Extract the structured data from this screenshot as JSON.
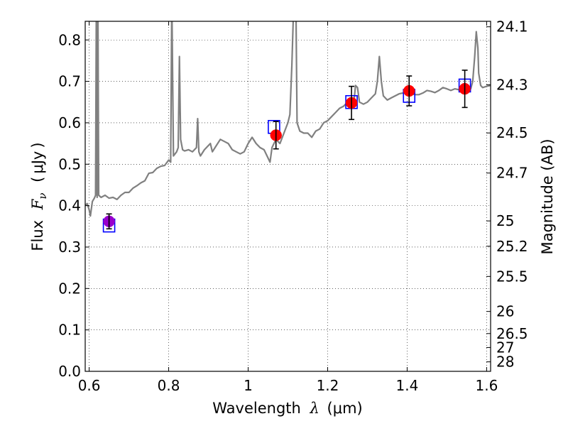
{
  "chart_data": {
    "type": "scatter",
    "xlabel": "Wavelength",
    "xlabel_symbol": "λ",
    "xlabel_unit": "μm",
    "ylabel": "Flux",
    "ylabel_symbol": "F",
    "ylabel_subscript": "ν",
    "ylabel_unit": "μJy",
    "y2label": "Magnitude (AB)",
    "xlim": [
      0.59,
      1.61
    ],
    "ylim": [
      0.0,
      0.845
    ],
    "grid": true,
    "x_ticks": [
      {
        "value": 0.6,
        "label": "0.6"
      },
      {
        "value": 0.8,
        "label": "0.8"
      },
      {
        "value": 1.0,
        "label": "1"
      },
      {
        "value": 1.2,
        "label": "1.2"
      },
      {
        "value": 1.4,
        "label": "1.4"
      },
      {
        "value": 1.6,
        "label": "1.6"
      }
    ],
    "y_ticks": [
      {
        "value": 0.0,
        "label": "0.0"
      },
      {
        "value": 0.1,
        "label": "0.1"
      },
      {
        "value": 0.2,
        "label": "0.2"
      },
      {
        "value": 0.3,
        "label": "0.3"
      },
      {
        "value": 0.4,
        "label": "0.4"
      },
      {
        "value": 0.5,
        "label": "0.5"
      },
      {
        "value": 0.6,
        "label": "0.6"
      },
      {
        "value": 0.7,
        "label": "0.7"
      },
      {
        "value": 0.8,
        "label": "0.8"
      }
    ],
    "y2_ticks": [
      {
        "mag": 24.1,
        "label": "24.1"
      },
      {
        "mag": 24.3,
        "label": "24.3"
      },
      {
        "mag": 24.5,
        "label": "24.5"
      },
      {
        "mag": 24.7,
        "label": "24.7"
      },
      {
        "mag": 25.0,
        "label": "25"
      },
      {
        "mag": 25.2,
        "label": "25.2"
      },
      {
        "mag": 25.5,
        "label": "25.5"
      },
      {
        "mag": 26.0,
        "label": "26"
      },
      {
        "mag": 26.5,
        "label": "26.5"
      },
      {
        "mag": 27.0,
        "label": "27"
      },
      {
        "mag": 28.0,
        "label": "28"
      }
    ],
    "spectrum_color": "#808080",
    "spectrum_peaks_clipped_above": 0.845,
    "spectrum": [
      [
        0.59,
        0.4
      ],
      [
        0.595,
        0.405
      ],
      [
        0.6,
        0.39
      ],
      [
        0.603,
        0.375
      ],
      [
        0.608,
        0.41
      ],
      [
        0.613,
        0.418
      ],
      [
        0.616,
        0.425
      ],
      [
        0.618,
        0.9
      ],
      [
        0.62,
        0.42
      ],
      [
        0.622,
        0.9
      ],
      [
        0.624,
        0.425
      ],
      [
        0.63,
        0.42
      ],
      [
        0.64,
        0.425
      ],
      [
        0.65,
        0.418
      ],
      [
        0.66,
        0.42
      ],
      [
        0.67,
        0.415
      ],
      [
        0.68,
        0.425
      ],
      [
        0.69,
        0.432
      ],
      [
        0.7,
        0.432
      ],
      [
        0.71,
        0.442
      ],
      [
        0.72,
        0.448
      ],
      [
        0.73,
        0.455
      ],
      [
        0.74,
        0.46
      ],
      [
        0.75,
        0.478
      ],
      [
        0.76,
        0.48
      ],
      [
        0.77,
        0.49
      ],
      [
        0.78,
        0.495
      ],
      [
        0.79,
        0.497
      ],
      [
        0.8,
        0.51
      ],
      [
        0.805,
        0.505
      ],
      [
        0.808,
        0.9
      ],
      [
        0.812,
        0.52
      ],
      [
        0.82,
        0.53
      ],
      [
        0.824,
        0.54
      ],
      [
        0.827,
        0.76
      ],
      [
        0.83,
        0.56
      ],
      [
        0.835,
        0.535
      ],
      [
        0.84,
        0.532
      ],
      [
        0.85,
        0.535
      ],
      [
        0.86,
        0.53
      ],
      [
        0.87,
        0.54
      ],
      [
        0.873,
        0.61
      ],
      [
        0.876,
        0.53
      ],
      [
        0.88,
        0.52
      ],
      [
        0.89,
        0.535
      ],
      [
        0.9,
        0.545
      ],
      [
        0.905,
        0.55
      ],
      [
        0.91,
        0.53
      ],
      [
        0.92,
        0.545
      ],
      [
        0.93,
        0.56
      ],
      [
        0.94,
        0.555
      ],
      [
        0.95,
        0.55
      ],
      [
        0.96,
        0.535
      ],
      [
        0.97,
        0.53
      ],
      [
        0.98,
        0.525
      ],
      [
        0.99,
        0.53
      ],
      [
        1.0,
        0.55
      ],
      [
        1.01,
        0.565
      ],
      [
        1.02,
        0.55
      ],
      [
        1.03,
        0.54
      ],
      [
        1.04,
        0.535
      ],
      [
        1.05,
        0.515
      ],
      [
        1.055,
        0.505
      ],
      [
        1.06,
        0.54
      ],
      [
        1.07,
        0.56
      ],
      [
        1.08,
        0.55
      ],
      [
        1.09,
        0.575
      ],
      [
        1.1,
        0.6
      ],
      [
        1.105,
        0.62
      ],
      [
        1.11,
        0.74
      ],
      [
        1.115,
        0.9
      ],
      [
        1.12,
        0.9
      ],
      [
        1.123,
        0.6
      ],
      [
        1.13,
        0.58
      ],
      [
        1.14,
        0.575
      ],
      [
        1.15,
        0.575
      ],
      [
        1.16,
        0.565
      ],
      [
        1.17,
        0.58
      ],
      [
        1.18,
        0.585
      ],
      [
        1.19,
        0.6
      ],
      [
        1.2,
        0.605
      ],
      [
        1.21,
        0.615
      ],
      [
        1.22,
        0.625
      ],
      [
        1.23,
        0.635
      ],
      [
        1.24,
        0.64
      ],
      [
        1.25,
        0.65
      ],
      [
        1.26,
        0.655
      ],
      [
        1.265,
        0.64
      ],
      [
        1.27,
        0.69
      ],
      [
        1.275,
        0.685
      ],
      [
        1.28,
        0.65
      ],
      [
        1.29,
        0.645
      ],
      [
        1.3,
        0.65
      ],
      [
        1.31,
        0.66
      ],
      [
        1.32,
        0.67
      ],
      [
        1.325,
        0.7
      ],
      [
        1.33,
        0.76
      ],
      [
        1.335,
        0.7
      ],
      [
        1.34,
        0.665
      ],
      [
        1.35,
        0.655
      ],
      [
        1.36,
        0.66
      ],
      [
        1.37,
        0.665
      ],
      [
        1.38,
        0.67
      ],
      [
        1.39,
        0.672
      ],
      [
        1.4,
        0.675
      ],
      [
        1.41,
        0.67
      ],
      [
        1.42,
        0.668
      ],
      [
        1.43,
        0.668
      ],
      [
        1.44,
        0.672
      ],
      [
        1.45,
        0.678
      ],
      [
        1.46,
        0.676
      ],
      [
        1.47,
        0.673
      ],
      [
        1.48,
        0.678
      ],
      [
        1.49,
        0.685
      ],
      [
        1.5,
        0.682
      ],
      [
        1.51,
        0.678
      ],
      [
        1.52,
        0.682
      ],
      [
        1.53,
        0.68
      ],
      [
        1.54,
        0.682
      ],
      [
        1.55,
        0.685
      ],
      [
        1.56,
        0.682
      ],
      [
        1.565,
        0.7
      ],
      [
        1.57,
        0.76
      ],
      [
        1.574,
        0.82
      ],
      [
        1.578,
        0.78
      ],
      [
        1.58,
        0.72
      ],
      [
        1.585,
        0.69
      ],
      [
        1.59,
        0.685
      ],
      [
        1.6,
        0.688
      ],
      [
        1.61,
        0.69
      ]
    ],
    "model_points": [
      {
        "x": 0.65,
        "y": 0.352
      },
      {
        "x": 1.065,
        "y": 0.59
      },
      {
        "x": 1.26,
        "y": 0.65
      },
      {
        "x": 1.405,
        "y": 0.665
      },
      {
        "x": 1.545,
        "y": 0.69
      }
    ],
    "model_marker_color": "#0000ff",
    "observed_points": [
      {
        "x": 0.65,
        "y": 0.362,
        "err": 0.018
      },
      {
        "x": 1.07,
        "y": 0.57,
        "err": 0.033
      },
      {
        "x": 1.26,
        "y": 0.648,
        "err": 0.04
      },
      {
        "x": 1.405,
        "y": 0.677,
        "err": 0.036
      },
      {
        "x": 1.545,
        "y": 0.682,
        "err": 0.045
      }
    ],
    "observed_marker_color": "#ff0000",
    "first_point_marker_color": "#9900cc"
  }
}
